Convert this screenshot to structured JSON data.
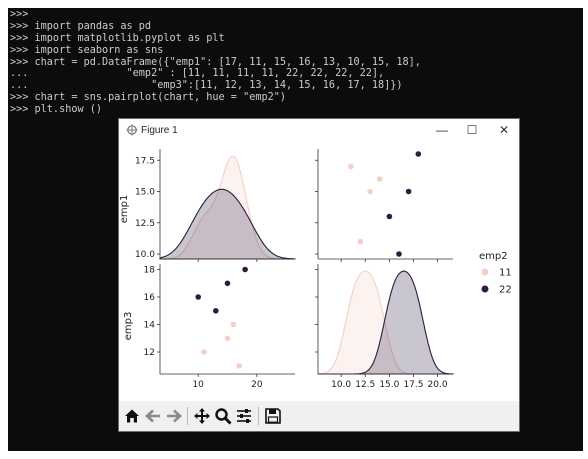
{
  "terminal": {
    "lines": [
      ">>>",
      ">>> import pandas as pd",
      ">>> import matplotlib.pyplot as plt",
      ">>> import seaborn as sns",
      ">>> chart = pd.DataFrame({\"emp1\": [17, 11, 15, 16, 13, 10, 15, 18],",
      "...                \"emp2\" : [11, 11, 11, 11, 22, 22, 22, 22],",
      "...                    \"emp3\":[11, 12, 13, 14, 15, 16, 17, 18]})",
      ">>> chart = sns.pairplot(chart, hue = \"emp2\")",
      ">>> plt.show ()"
    ]
  },
  "window": {
    "title": "Figure 1",
    "minimize": "—",
    "maximize": "☐",
    "close": "✕"
  },
  "colors": {
    "hue_11": "#f3cfc6",
    "hue_22": "#2b1d3f"
  },
  "toolbar": {
    "buttons": [
      "home-icon",
      "back-icon",
      "forward-icon",
      "pan-icon",
      "zoom-icon",
      "configure-subplots-icon",
      "save-icon"
    ]
  },
  "chart_data": {
    "type": "pairplot",
    "hue_variable": "emp2",
    "legend": {
      "title": "emp2",
      "placement": "right",
      "entries": [
        "11",
        "22"
      ]
    },
    "variables": [
      "emp1",
      "emp3"
    ],
    "data": {
      "emp1": [
        17,
        11,
        15,
        16,
        13,
        10,
        15,
        18
      ],
      "emp2": [
        11,
        11,
        11,
        11,
        22,
        22,
        22,
        22
      ],
      "emp3": [
        11,
        12,
        13,
        14,
        15,
        16,
        17,
        18
      ]
    },
    "axes": {
      "emp1": {
        "label": "emp1",
        "y_ticks": [
          "10.0",
          "12.5",
          "15.0",
          "17.5"
        ],
        "x_ticks": [
          "10",
          "20"
        ],
        "y_range": [
          9.6,
          18.4
        ],
        "x_range": [
          3.5,
          26.5
        ]
      },
      "emp3": {
        "label": "emp3",
        "y_ticks": [
          "12",
          "14",
          "16",
          "18"
        ],
        "x_ticks": [
          "10.0",
          "12.5",
          "15.0",
          "17.5",
          "20.0"
        ],
        "y_range": [
          10.4,
          18.4
        ],
        "x_range": [
          7.6,
          21.6
        ]
      }
    },
    "grid": false
  }
}
